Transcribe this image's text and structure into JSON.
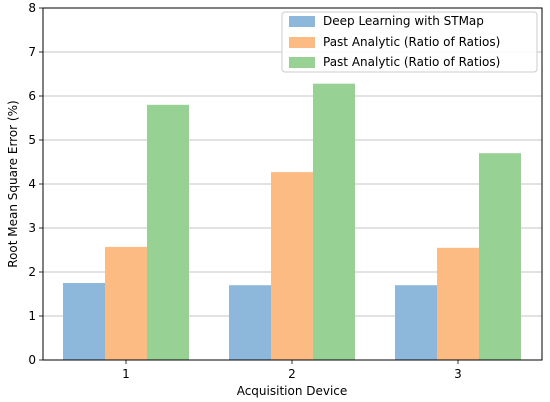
{
  "chart_data": {
    "type": "bar",
    "title": "",
    "xlabel": "Acquisition Device",
    "ylabel": "Root Mean Square Error (%)",
    "categories": [
      "1",
      "2",
      "3"
    ],
    "yticks": [
      "0",
      "1",
      "2",
      "3",
      "4",
      "5",
      "6",
      "7",
      "8"
    ],
    "ylim": [
      0,
      8
    ],
    "grid": "horizontal",
    "legend_position": "top-right",
    "series": [
      {
        "name": "Deep Learning with STMap",
        "values": [
          1.75,
          1.7,
          1.7
        ],
        "color": "#8db8dc"
      },
      {
        "name": "Past Analytic (Ratio of Ratios)",
        "values": [
          2.57,
          4.27,
          2.55
        ],
        "color": "#fdbb84"
      },
      {
        "name": "Past Analytic (Ratio of Ratios)",
        "values": [
          5.8,
          6.28,
          4.7
        ],
        "color": "#98d194"
      }
    ]
  }
}
